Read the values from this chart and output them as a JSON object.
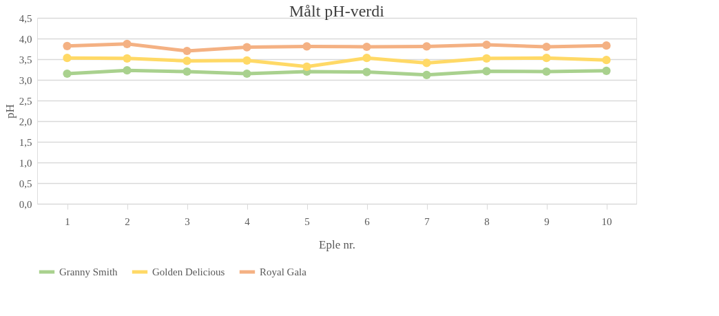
{
  "chart_data": {
    "type": "line",
    "title": "Målt pH-verdi",
    "xlabel": "Eple nr.",
    "ylabel": "pH",
    "categories": [
      "1",
      "2",
      "3",
      "4",
      "5",
      "6",
      "7",
      "8",
      "9",
      "10"
    ],
    "series": [
      {
        "name": "Granny Smith",
        "color": "#a9d18e",
        "values": [
          3.15,
          3.23,
          3.2,
          3.15,
          3.2,
          3.19,
          3.12,
          3.21,
          3.2,
          3.22
        ]
      },
      {
        "name": "Golden Delicious",
        "color": "#ffd966",
        "values": [
          3.53,
          3.52,
          3.46,
          3.47,
          3.32,
          3.53,
          3.41,
          3.52,
          3.53,
          3.48
        ]
      },
      {
        "name": "Royal Gala",
        "color": "#f4b183",
        "values": [
          3.82,
          3.87,
          3.7,
          3.79,
          3.81,
          3.8,
          3.81,
          3.85,
          3.8,
          3.83
        ]
      }
    ],
    "ylim": [
      0,
      4.5
    ],
    "yticks": [
      {
        "value": 0,
        "label": "0,0"
      },
      {
        "value": 0.5,
        "label": "0,5"
      },
      {
        "value": 1,
        "label": "1,0"
      },
      {
        "value": 1.5,
        "label": "1,5"
      },
      {
        "value": 2,
        "label": "2,0"
      },
      {
        "value": 2.5,
        "label": "2,5"
      },
      {
        "value": 3,
        "label": "3,0"
      },
      {
        "value": 3.5,
        "label": "3,5"
      },
      {
        "value": 4,
        "label": "4,0"
      },
      {
        "value": 4.5,
        "label": "4,5"
      }
    ],
    "grid": "y",
    "legend": "bottom",
    "marker": "circle",
    "line_style": "solid"
  }
}
